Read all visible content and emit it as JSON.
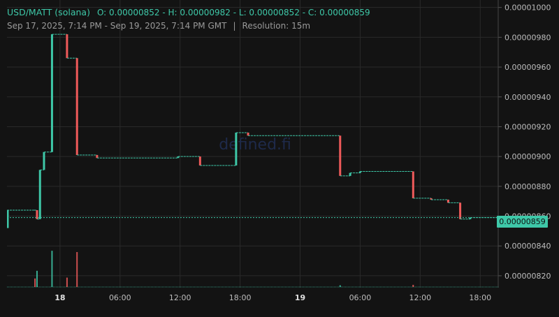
{
  "header": {
    "pair": "USD/MATT (solana)",
    "ohlc": "O: 0.00000852 - H: 0.00000982 - L: 0.00000852 - C: 0.00000859",
    "range": "Sep 17, 2025, 7:14 PM - Sep 19, 2025, 7:14 PM GMT",
    "separator": "|",
    "resolution": "Resolution: 15m"
  },
  "watermark": "defined.fi",
  "current_price_label": "0.00000859",
  "colors": {
    "background": "#131313",
    "grid": "#2a2a2a",
    "up": "#3ec8a8",
    "down": "#ef5a5a",
    "axis_text": "#bdbdbd",
    "header_text": "#3ec8a8",
    "subheader_text": "#9a9a9a"
  },
  "chart_data": {
    "type": "line",
    "style": "stepped candlestick (15m)",
    "title": "USD/MATT (solana)",
    "xlabel": "",
    "ylabel": "",
    "ylim": [
      8.12e-06,
      1.005e-05
    ],
    "x_tick_labels": [
      "18",
      "06:00",
      "12:00",
      "18:00",
      "19",
      "06:00",
      "12:00",
      "18:00"
    ],
    "y_tick_labels": [
      "0.00000820",
      "0.00000840",
      "0.00000860",
      "0.00000880",
      "0.00000900",
      "0.00000920",
      "0.00000940",
      "0.00000960",
      "0.00000980",
      "0.00001000"
    ],
    "y_ticks": [
      8.2e-06,
      8.4e-06,
      8.6e-06,
      8.8e-06,
      9e-06,
      9.2e-06,
      9.4e-06,
      9.6e-06,
      9.8e-06,
      1e-05
    ],
    "x_range_hours": [
      -5.3,
      43.8
    ],
    "x_ticks_hours": [
      0,
      6,
      12,
      18,
      24,
      30,
      36,
      42
    ],
    "current_price": 8.59e-06,
    "price": [
      {
        "t": -5.3,
        "v": 8.64e-06
      },
      {
        "t": -2.6,
        "v": 8.64e-06
      },
      {
        "t": -2.3,
        "v": 8.58e-06
      },
      {
        "t": -2.0,
        "v": 8.91e-06
      },
      {
        "t": -1.6,
        "v": 9.03e-06
      },
      {
        "t": -0.8,
        "v": 9.82e-06
      },
      {
        "t": 0.7,
        "v": 9.66e-06
      },
      {
        "t": 1.7,
        "v": 9.01e-06
      },
      {
        "t": 3.7,
        "v": 8.99e-06
      },
      {
        "t": 11.8,
        "v": 9e-06
      },
      {
        "t": 14.0,
        "v": 8.94e-06
      },
      {
        "t": 17.6,
        "v": 9.16e-06
      },
      {
        "t": 18.8,
        "v": 9.14e-06
      },
      {
        "t": 28.0,
        "v": 8.87e-06
      },
      {
        "t": 29.0,
        "v": 8.89e-06
      },
      {
        "t": 30.0,
        "v": 8.9e-06
      },
      {
        "t": 35.3,
        "v": 8.72e-06
      },
      {
        "t": 37.1,
        "v": 8.71e-06
      },
      {
        "t": 38.8,
        "v": 8.69e-06
      },
      {
        "t": 40.0,
        "v": 8.58e-06
      },
      {
        "t": 41.0,
        "v": 8.59e-06
      },
      {
        "t": 43.8,
        "v": 8.59e-06
      }
    ],
    "volume_bars": [
      {
        "t": -2.5,
        "h": 0.2,
        "dir": "down"
      },
      {
        "t": -2.3,
        "h": 0.38,
        "dir": "up"
      },
      {
        "t": -0.8,
        "h": 0.85,
        "dir": "up"
      },
      {
        "t": 0.7,
        "h": 0.22,
        "dir": "down"
      },
      {
        "t": 1.7,
        "h": 0.82,
        "dir": "down"
      },
      {
        "t": 28.0,
        "h": 0.04,
        "dir": "up"
      },
      {
        "t": 35.3,
        "h": 0.05,
        "dir": "down"
      }
    ]
  }
}
